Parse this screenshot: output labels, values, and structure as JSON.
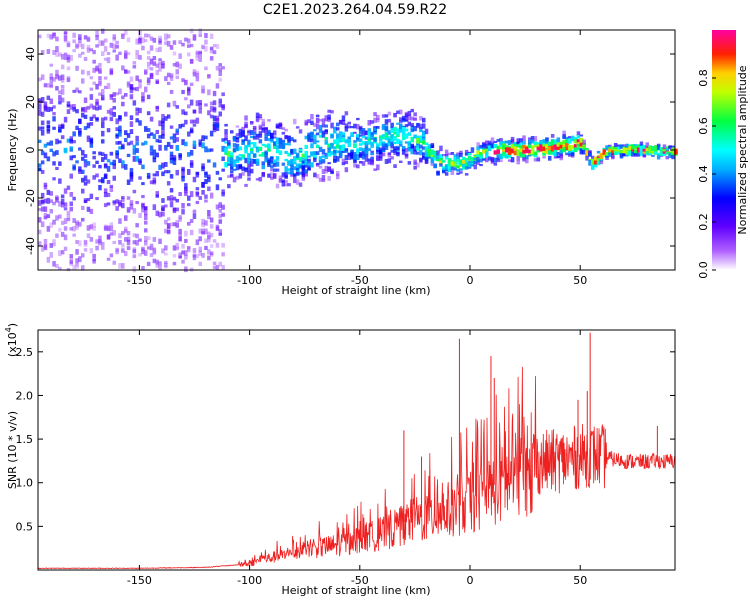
{
  "title": "C2E1.2023.264.04.59.R22",
  "chart_data": [
    {
      "type": "heatmap",
      "xlabel": "Height of straight line (km)",
      "ylabel": "Frequency (Hz)",
      "xlim": [
        -196,
        93
      ],
      "ylim": [
        -50,
        50
      ],
      "xticks": [
        -150,
        -100,
        -50,
        0,
        50
      ],
      "yticks": [
        -40,
        -20,
        0,
        20,
        40
      ],
      "colorbar": {
        "label": "Normalized spectral amplitude",
        "range": [
          0.0,
          1.0
        ],
        "ticks": [
          0.0,
          0.2,
          0.4,
          0.6,
          0.8
        ],
        "tick_labels": [
          "0.0",
          "0.2",
          "0.4",
          "0.6",
          "0.8"
        ],
        "colormap": [
          "#ffffff",
          "#7f00ff",
          "#0000ff",
          "#00ffff",
          "#00ff00",
          "#ffff00",
          "#ff0000",
          "#ff00ff"
        ]
      },
      "ridge": {
        "x": [
          -196,
          -150,
          -110,
          -100,
          -90,
          -80,
          -70,
          -60,
          -50,
          -40,
          -30,
          -22,
          -15,
          -5,
          5,
          15,
          25,
          35,
          45,
          50,
          55,
          60,
          70,
          80,
          93
        ],
        "y": [
          0,
          0,
          -2,
          0,
          0,
          -4,
          2,
          3,
          2,
          5,
          6,
          3,
          -5,
          -6,
          -1,
          0,
          0,
          1,
          2,
          3,
          -6,
          -1,
          0,
          0,
          -1
        ]
      }
    },
    {
      "type": "line",
      "xlabel": "Height of straight line (km)",
      "ylabel": "SNR (10 * v/v)",
      "y_multiplier_label": "(x10",
      "y_multiplier_exp": "4",
      "xlim": [
        -196,
        93
      ],
      "ylim": [
        0,
        2.75
      ],
      "xticks": [
        -150,
        -100,
        -50,
        0,
        50
      ],
      "yticks": [
        0.5,
        1.0,
        1.5,
        2.0,
        2.5
      ],
      "ytick_labels": [
        "0.5",
        "1.0",
        "1.5",
        "2.0",
        "2.5"
      ],
      "line_color": "#ee2020",
      "envelope": {
        "x": [
          -196,
          -150,
          -120,
          -110,
          -100,
          -95,
          -90,
          -85,
          -80,
          -75,
          -70,
          -65,
          -60,
          -55,
          -50,
          -45,
          -40,
          -35,
          -30,
          -25,
          -20,
          -15,
          -10,
          -5,
          0,
          5,
          10,
          15,
          20,
          25,
          30,
          35,
          40,
          45,
          50,
          55,
          60,
          65,
          70,
          75,
          80,
          85,
          88,
          93
        ],
        "y": [
          0.02,
          0.02,
          0.03,
          0.05,
          0.07,
          0.12,
          0.15,
          0.17,
          0.2,
          0.24,
          0.26,
          0.28,
          0.3,
          0.33,
          0.38,
          0.4,
          0.43,
          0.48,
          0.55,
          0.6,
          0.62,
          0.68,
          0.72,
          0.76,
          0.8,
          0.88,
          0.96,
          1.04,
          1.12,
          1.18,
          1.22,
          1.24,
          1.25,
          1.27,
          1.3,
          1.32,
          1.3,
          1.27,
          1.25,
          1.24,
          1.24,
          1.25,
          1.24,
          1.25
        ]
      },
      "spikes": [
        {
          "x": -4.8,
          "y": 2.65
        },
        {
          "x": 9.5,
          "y": 2.45
        },
        {
          "x": 54.5,
          "y": 2.72
        },
        {
          "x": 53.2,
          "y": 2.05
        },
        {
          "x": 49.0,
          "y": 1.95
        },
        {
          "x": 11.0,
          "y": 2.2
        },
        {
          "x": -30.0,
          "y": 1.6
        },
        {
          "x": -22.0,
          "y": 1.3
        },
        {
          "x": 85.0,
          "y": 1.65
        }
      ]
    }
  ]
}
